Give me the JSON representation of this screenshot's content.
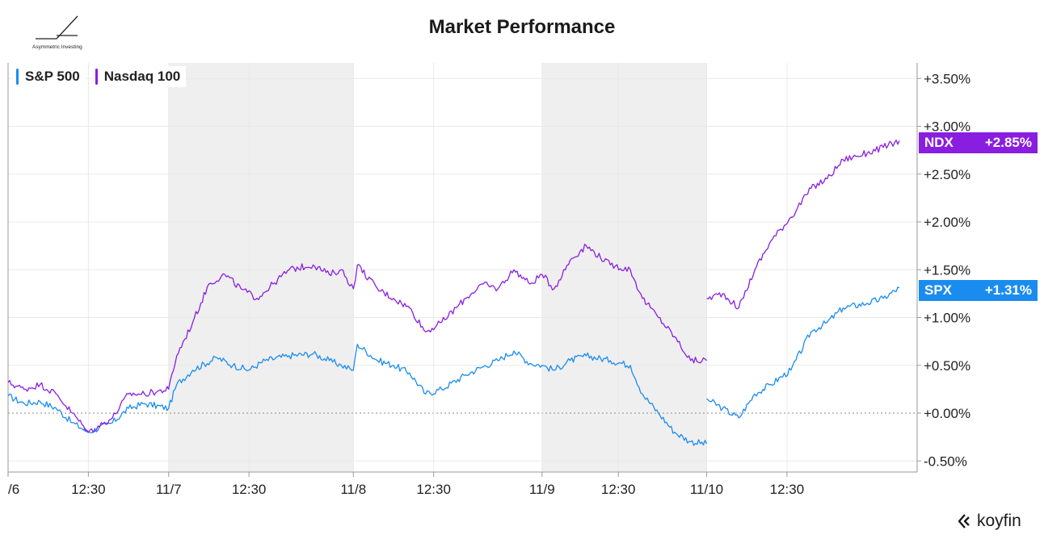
{
  "title": "Market Performance",
  "brand_caption": "Asymmetric Investing",
  "watermark": "koyfin",
  "colors": {
    "spx": "#1a8cf0",
    "ndx": "#8a1ee0",
    "shade": "#efefef",
    "grid": "#e9e9e9",
    "axis": "#9a9a9a",
    "text": "#222222"
  },
  "chart_data": {
    "type": "line",
    "x": [
      "11/6 09:30",
      "11/6 12:30",
      "11/6 16:00",
      "11/7 09:30",
      "11/7 12:30",
      "11/7 16:00",
      "11/8 09:30",
      "11/8 12:30",
      "11/8 16:00",
      "11/9 09:30",
      "11/9 12:30",
      "11/9 16:00",
      "11/10 09:30",
      "11/10 12:30",
      "11/10 16:00"
    ],
    "x_ticks": [
      "/6",
      "12:30",
      "11/7",
      "12:30",
      "11/8",
      "12:30",
      "11/9",
      "12:30",
      "11/10",
      "12:30"
    ],
    "shaded_sessions": [
      "11/7",
      "11/9"
    ],
    "ylim": [
      -0.6,
      3.6
    ],
    "y_ticks": [
      "-0.50%",
      "+0.00%",
      "+0.50%",
      "+1.00%",
      "+1.50%",
      "+2.00%",
      "+2.50%",
      "+3.00%",
      "+3.50%"
    ],
    "grid": true,
    "legend_position": "top-left",
    "series": [
      {
        "name": "S&P 500",
        "ticker": "SPX",
        "last": "+1.31%",
        "points": [
          [
            0,
            0.18
          ],
          [
            0.4,
            0.1
          ],
          [
            0.8,
            0.12
          ],
          [
            1.2,
            0.05
          ],
          [
            1.6,
            -0.1
          ],
          [
            2.0,
            -0.2
          ],
          [
            2.6,
            -0.1
          ],
          [
            3.0,
            0.05
          ],
          [
            3.4,
            0.1
          ],
          [
            4.0,
            0.05
          ],
          [
            4.2,
            0.3
          ],
          [
            4.6,
            0.45
          ],
          [
            5.2,
            0.58
          ],
          [
            5.6,
            0.5
          ],
          [
            6.0,
            0.45
          ],
          [
            6.4,
            0.55
          ],
          [
            7.0,
            0.6
          ],
          [
            7.6,
            0.62
          ],
          [
            8.0,
            0.55
          ],
          [
            8.3,
            0.5
          ],
          [
            8.6,
            0.45
          ],
          [
            8.7,
            0.72
          ],
          [
            9.2,
            0.55
          ],
          [
            9.6,
            0.5
          ],
          [
            10.0,
            0.42
          ],
          [
            10.4,
            0.2
          ],
          [
            10.8,
            0.25
          ],
          [
            11.4,
            0.4
          ],
          [
            11.8,
            0.48
          ],
          [
            12.2,
            0.55
          ],
          [
            12.6,
            0.65
          ],
          [
            13.0,
            0.52
          ],
          [
            13.3,
            0.5
          ],
          [
            13.6,
            0.45
          ],
          [
            14.0,
            0.55
          ],
          [
            14.4,
            0.6
          ],
          [
            15.0,
            0.55
          ],
          [
            15.5,
            0.5
          ],
          [
            15.8,
            0.2
          ],
          [
            16.2,
            0.0
          ],
          [
            16.6,
            -0.2
          ],
          [
            17.0,
            -0.3
          ],
          [
            17.4,
            -0.32
          ],
          [
            17.4,
            0.15
          ],
          [
            17.8,
            0.05
          ],
          [
            18.2,
            -0.05
          ],
          [
            18.6,
            0.2
          ],
          [
            19.0,
            0.3
          ],
          [
            19.5,
            0.45
          ],
          [
            20.0,
            0.85
          ],
          [
            20.4,
            0.95
          ],
          [
            20.8,
            1.1
          ],
          [
            21.4,
            1.15
          ],
          [
            21.8,
            1.2
          ],
          [
            22.2,
            1.31
          ]
        ]
      },
      {
        "name": "Nasdaq 100",
        "ticker": "NDX",
        "last": "+2.85%",
        "points": [
          [
            0,
            0.32
          ],
          [
            0.4,
            0.25
          ],
          [
            0.8,
            0.3
          ],
          [
            1.2,
            0.2
          ],
          [
            1.6,
            0.0
          ],
          [
            2.0,
            -0.2
          ],
          [
            2.6,
            -0.05
          ],
          [
            3.0,
            0.2
          ],
          [
            3.4,
            0.2
          ],
          [
            4.0,
            0.25
          ],
          [
            4.2,
            0.6
          ],
          [
            4.6,
            0.95
          ],
          [
            5.0,
            1.35
          ],
          [
            5.4,
            1.45
          ],
          [
            5.8,
            1.3
          ],
          [
            6.2,
            1.2
          ],
          [
            6.6,
            1.35
          ],
          [
            7.0,
            1.5
          ],
          [
            7.6,
            1.55
          ],
          [
            8.0,
            1.45
          ],
          [
            8.3,
            1.5
          ],
          [
            8.6,
            1.3
          ],
          [
            8.7,
            1.55
          ],
          [
            9.2,
            1.3
          ],
          [
            9.6,
            1.2
          ],
          [
            10.0,
            1.1
          ],
          [
            10.4,
            0.85
          ],
          [
            10.8,
            0.95
          ],
          [
            11.4,
            1.2
          ],
          [
            11.8,
            1.35
          ],
          [
            12.2,
            1.3
          ],
          [
            12.6,
            1.5
          ],
          [
            13.0,
            1.35
          ],
          [
            13.3,
            1.45
          ],
          [
            13.6,
            1.3
          ],
          [
            14.0,
            1.6
          ],
          [
            14.4,
            1.75
          ],
          [
            15.0,
            1.55
          ],
          [
            15.5,
            1.5
          ],
          [
            15.8,
            1.2
          ],
          [
            16.2,
            1.0
          ],
          [
            16.6,
            0.8
          ],
          [
            17.0,
            0.55
          ],
          [
            17.4,
            0.55
          ],
          [
            17.4,
            1.2
          ],
          [
            17.8,
            1.25
          ],
          [
            18.2,
            1.1
          ],
          [
            18.6,
            1.5
          ],
          [
            19.0,
            1.8
          ],
          [
            19.5,
            2.05
          ],
          [
            20.0,
            2.35
          ],
          [
            20.4,
            2.45
          ],
          [
            20.8,
            2.65
          ],
          [
            21.4,
            2.72
          ],
          [
            21.8,
            2.78
          ],
          [
            22.2,
            2.85
          ]
        ]
      }
    ]
  }
}
